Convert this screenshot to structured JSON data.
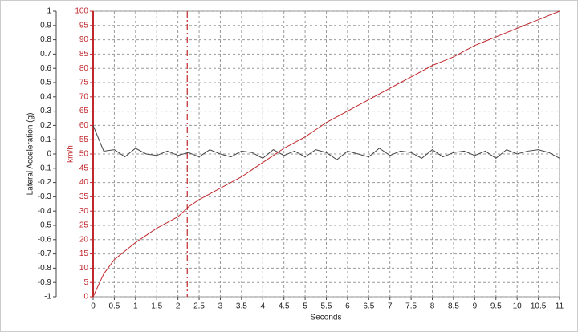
{
  "chart_data": {
    "type": "line",
    "xlabel": "Seconds",
    "ylabel": "Lateral Acceleration (g)",
    "y2label": "km/h",
    "x": [
      0,
      0.25,
      0.5,
      0.75,
      1,
      1.25,
      1.5,
      1.75,
      2,
      2.25,
      2.5,
      2.75,
      3,
      3.25,
      3.5,
      3.75,
      4,
      4.25,
      4.5,
      4.75,
      5,
      5.25,
      5.5,
      5.75,
      6,
      6.25,
      6.5,
      6.75,
      7,
      7.25,
      7.5,
      7.75,
      8,
      8.25,
      8.5,
      8.75,
      9,
      9.25,
      9.5,
      9.75,
      10,
      10.25,
      10.5,
      10.75,
      11
    ],
    "series": [
      {
        "color": "#444444",
        "values": [
          0.2,
          0.02,
          0.03,
          -0.02,
          0.04,
          0,
          -0.01,
          0.02,
          -0.01,
          0.01,
          -0.02,
          0.03,
          0,
          -0.02,
          0.02,
          0.01,
          -0.03,
          0.03,
          -0.01,
          0.02,
          -0.02,
          0.03,
          0.01,
          -0.04,
          0.02,
          0,
          -0.02,
          0.04,
          -0.01,
          0.02,
          0.01,
          -0.03,
          0.03,
          -0.02,
          0.01,
          0.02,
          -0.01,
          0.02,
          -0.03,
          0.03,
          0,
          0.02,
          0.03,
          0.01,
          -0.03
        ]
      },
      {
        "color": "#c0282d",
        "axis": "y2",
        "values": [
          0,
          8,
          13,
          16,
          19,
          21.5,
          24,
          26,
          28,
          31.5,
          34,
          36,
          38,
          40,
          42,
          44.5,
          47,
          49.5,
          52,
          54,
          56,
          58.5,
          61,
          63,
          65,
          67,
          69,
          71,
          73,
          75,
          77,
          79,
          81,
          82.5,
          84,
          86,
          88,
          89.5,
          91,
          92.5,
          94,
          95.5,
          97,
          98.5,
          100
        ]
      }
    ],
    "marker_x": 2.22,
    "marker_color": "#c0282d",
    "xlim": [
      0,
      11
    ],
    "xticks": [
      0,
      0.5,
      1,
      1.5,
      2,
      2.5,
      3,
      3.5,
      4,
      4.5,
      5,
      5.5,
      6,
      6.5,
      7,
      7.5,
      8,
      8.5,
      9,
      9.5,
      10,
      10.5,
      11
    ],
    "ylim": [
      -1,
      1
    ],
    "yticks": [
      -1,
      -0.9,
      -0.8,
      -0.7,
      -0.6,
      -0.5,
      -0.4,
      -0.3,
      -0.2,
      -0.1,
      0,
      0.1,
      0.2,
      0.3,
      0.4,
      0.5,
      0.6,
      0.7,
      0.8,
      0.9,
      1
    ],
    "y2lim": [
      0,
      100
    ],
    "y2ticks": [
      0,
      5,
      10,
      15,
      20,
      25,
      30,
      35,
      40,
      45,
      50,
      55,
      60,
      65,
      70,
      75,
      80,
      85,
      90,
      95,
      100
    ],
    "y2color": "#c0282d",
    "grid": true
  }
}
